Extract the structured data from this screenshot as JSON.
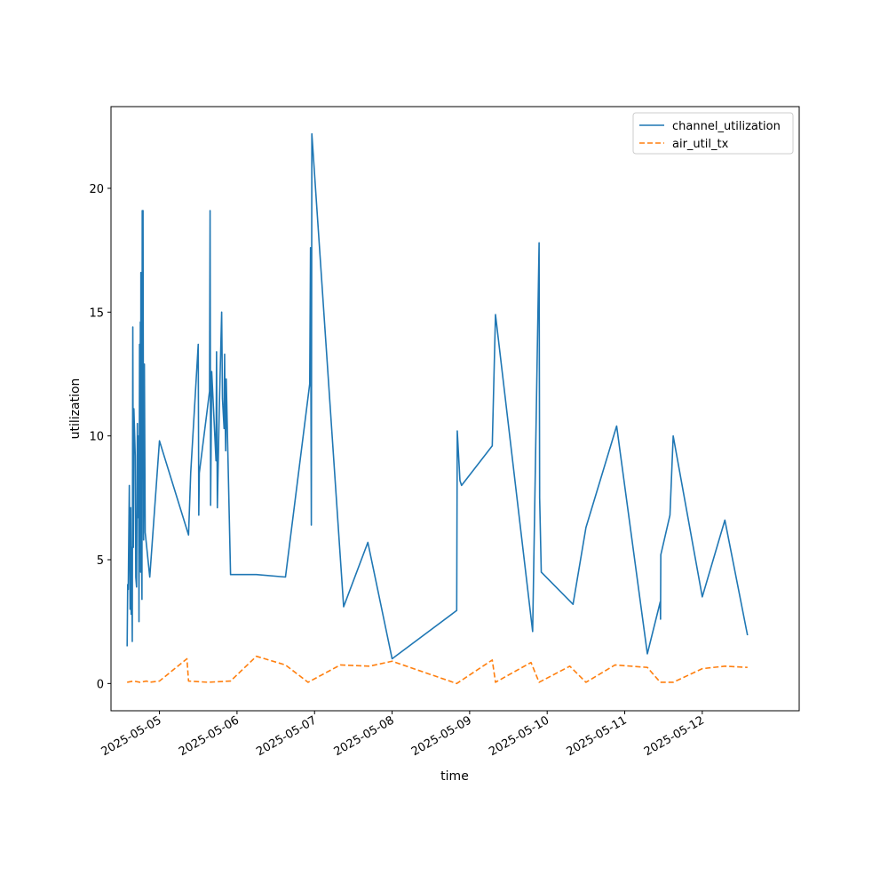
{
  "chart_data": {
    "type": "line",
    "title": "",
    "xlabel": "time",
    "ylabel": "utilization",
    "x_type": "datetime",
    "xlim": [
      "2025-05-04 09:00",
      "2025-05-13 06:00"
    ],
    "ylim": [
      -1.1,
      23.3
    ],
    "x_ticks": [
      {
        "value": "2025-05-05 00:00",
        "label": "2025-05-05"
      },
      {
        "value": "2025-05-06 00:00",
        "label": "2025-05-06"
      },
      {
        "value": "2025-05-07 00:00",
        "label": "2025-05-07"
      },
      {
        "value": "2025-05-08 00:00",
        "label": "2025-05-08"
      },
      {
        "value": "2025-05-09 00:00",
        "label": "2025-05-09"
      },
      {
        "value": "2025-05-10 00:00",
        "label": "2025-05-10"
      },
      {
        "value": "2025-05-11 00:00",
        "label": "2025-05-11"
      },
      {
        "value": "2025-05-12 00:00",
        "label": "2025-05-12"
      }
    ],
    "y_ticks": [
      0,
      5,
      10,
      15,
      20
    ],
    "grid": false,
    "legend_position": "top-right",
    "series": [
      {
        "name": "channel_utilization",
        "color": "#1f77b4",
        "style": "solid",
        "points": [
          [
            "2025-05-04 14:00",
            1.5
          ],
          [
            "2025-05-04 14:10",
            4.0
          ],
          [
            "2025-05-04 14:20",
            3.8
          ],
          [
            "2025-05-04 14:40",
            8.0
          ],
          [
            "2025-05-04 14:55",
            3.0
          ],
          [
            "2025-05-04 15:05",
            7.1
          ],
          [
            "2025-05-04 15:15",
            2.8
          ],
          [
            "2025-05-04 15:25",
            5.5
          ],
          [
            "2025-05-04 15:35",
            1.7
          ],
          [
            "2025-05-04 15:45",
            14.4
          ],
          [
            "2025-05-04 15:55",
            5.5
          ],
          [
            "2025-05-04 16:05",
            11.1
          ],
          [
            "2025-05-04 16:30",
            9.2
          ],
          [
            "2025-05-04 16:40",
            4.3
          ],
          [
            "2025-05-04 16:55",
            3.9
          ],
          [
            "2025-05-04 17:10",
            10.5
          ],
          [
            "2025-05-04 17:20",
            6.7
          ],
          [
            "2025-05-04 17:30",
            10.0
          ],
          [
            "2025-05-04 17:40",
            2.5
          ],
          [
            "2025-05-04 17:50",
            13.7
          ],
          [
            "2025-05-04 18:00",
            5.3
          ],
          [
            "2025-05-04 18:05",
            14.6
          ],
          [
            "2025-05-04 18:10",
            4.5
          ],
          [
            "2025-05-04 18:15",
            16.6
          ],
          [
            "2025-05-04 18:25",
            7.0
          ],
          [
            "2025-05-04 18:35",
            3.4
          ],
          [
            "2025-05-04 18:40",
            19.1
          ],
          [
            "2025-05-04 18:45",
            8.3
          ],
          [
            "2025-05-04 18:55",
            19.1
          ],
          [
            "2025-05-04 19:05",
            5.8
          ],
          [
            "2025-05-04 19:20",
            12.9
          ],
          [
            "2025-05-04 19:35",
            6.1
          ],
          [
            "2025-05-04 21:00",
            4.3
          ],
          [
            "2025-05-05 00:00",
            9.8
          ],
          [
            "2025-05-05 09:00",
            6.0
          ],
          [
            "2025-05-05 09:40",
            8.5
          ],
          [
            "2025-05-05 12:00",
            13.7
          ],
          [
            "2025-05-05 12:10",
            6.8
          ],
          [
            "2025-05-05 12:20",
            8.5
          ],
          [
            "2025-05-05 15:30",
            11.8
          ],
          [
            "2025-05-05 15:40",
            19.1
          ],
          [
            "2025-05-05 15:50",
            7.2
          ],
          [
            "2025-05-05 16:10",
            12.6
          ],
          [
            "2025-05-05 17:30",
            9.0
          ],
          [
            "2025-05-05 17:40",
            13.4
          ],
          [
            "2025-05-05 17:55",
            7.1
          ],
          [
            "2025-05-05 18:30",
            11.0
          ],
          [
            "2025-05-05 19:15",
            15.0
          ],
          [
            "2025-05-05 19:30",
            11.5
          ],
          [
            "2025-05-05 20:00",
            10.3
          ],
          [
            "2025-05-05 20:10",
            13.3
          ],
          [
            "2025-05-05 20:20",
            10.6
          ],
          [
            "2025-05-05 20:30",
            9.4
          ],
          [
            "2025-05-05 20:40",
            12.3
          ],
          [
            "2025-05-05 22:00",
            4.4
          ],
          [
            "2025-05-06 06:00",
            4.4
          ],
          [
            "2025-05-06 15:00",
            4.3
          ],
          [
            "2025-05-06 22:30",
            12.1
          ],
          [
            "2025-05-06 22:45",
            17.6
          ],
          [
            "2025-05-06 23:00",
            6.4
          ],
          [
            "2025-05-06 23:10",
            22.2
          ],
          [
            "2025-05-07 09:00",
            3.1
          ],
          [
            "2025-05-07 16:30",
            5.7
          ],
          [
            "2025-05-08 00:00",
            1.0
          ],
          [
            "2025-05-08 20:00",
            2.95
          ],
          [
            "2025-05-08 20:10",
            10.2
          ],
          [
            "2025-05-08 21:00",
            8.2
          ],
          [
            "2025-05-08 21:30",
            8.0
          ],
          [
            "2025-05-09 07:00",
            9.6
          ],
          [
            "2025-05-09 08:00",
            14.9
          ],
          [
            "2025-05-09 19:30",
            2.1
          ],
          [
            "2025-05-09 21:30",
            17.8
          ],
          [
            "2025-05-09 21:40",
            7.5
          ],
          [
            "2025-05-09 22:10",
            4.5
          ],
          [
            "2025-05-10 08:00",
            3.2
          ],
          [
            "2025-05-10 12:00",
            6.3
          ],
          [
            "2025-05-10 21:30",
            10.4
          ],
          [
            "2025-05-11 07:00",
            1.2
          ],
          [
            "2025-05-11 11:00",
            3.3
          ],
          [
            "2025-05-11 11:05",
            2.6
          ],
          [
            "2025-05-11 11:10",
            5.2
          ],
          [
            "2025-05-11 14:00",
            6.8
          ],
          [
            "2025-05-11 15:00",
            10.0
          ],
          [
            "2025-05-12 00:00",
            3.5
          ],
          [
            "2025-05-12 07:00",
            6.6
          ],
          [
            "2025-05-12 14:00",
            1.95
          ]
        ]
      },
      {
        "name": "air_util_tx",
        "color": "#ff7f0e",
        "style": "dashed",
        "points": [
          [
            "2025-05-04 14:00",
            0.05
          ],
          [
            "2025-05-04 16:00",
            0.1
          ],
          [
            "2025-05-04 18:00",
            0.05
          ],
          [
            "2025-05-04 20:00",
            0.1
          ],
          [
            "2025-05-04 21:00",
            0.05
          ],
          [
            "2025-05-05 00:00",
            0.1
          ],
          [
            "2025-05-05 08:30",
            1.0
          ],
          [
            "2025-05-05 09:00",
            0.1
          ],
          [
            "2025-05-05 15:00",
            0.05
          ],
          [
            "2025-05-05 22:00",
            0.1
          ],
          [
            "2025-05-06 06:00",
            1.1
          ],
          [
            "2025-05-06 15:00",
            0.75
          ],
          [
            "2025-05-06 22:00",
            0.05
          ],
          [
            "2025-05-07 08:00",
            0.75
          ],
          [
            "2025-05-07 17:00",
            0.7
          ],
          [
            "2025-05-08 00:00",
            0.9
          ],
          [
            "2025-05-08 20:00",
            0.0
          ],
          [
            "2025-05-09 07:00",
            0.95
          ],
          [
            "2025-05-09 08:00",
            0.05
          ],
          [
            "2025-05-09 19:00",
            0.85
          ],
          [
            "2025-05-09 21:30",
            0.05
          ],
          [
            "2025-05-10 07:00",
            0.7
          ],
          [
            "2025-05-10 12:00",
            0.05
          ],
          [
            "2025-05-10 21:00",
            0.75
          ],
          [
            "2025-05-11 07:00",
            0.65
          ],
          [
            "2025-05-11 11:00",
            0.05
          ],
          [
            "2025-05-11 15:00",
            0.05
          ],
          [
            "2025-05-12 00:00",
            0.6
          ],
          [
            "2025-05-12 07:00",
            0.7
          ],
          [
            "2025-05-12 14:00",
            0.65
          ]
        ]
      }
    ]
  }
}
